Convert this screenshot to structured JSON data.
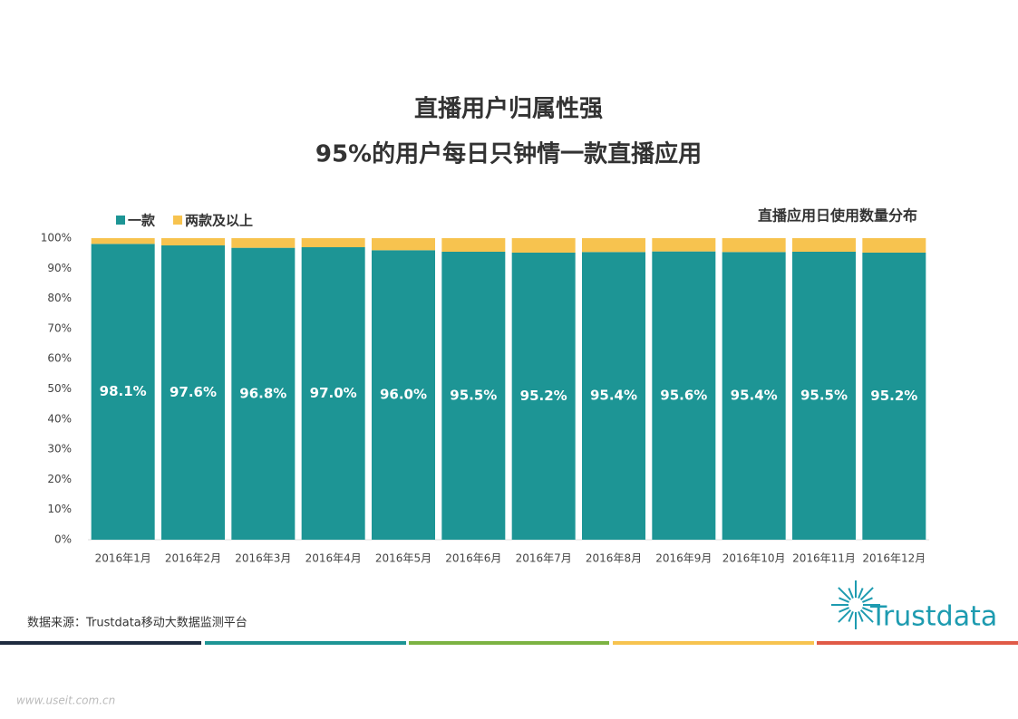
{
  "chart_data": {
    "type": "stacked_bar",
    "title": [
      "直播用户归属性强",
      "95%的用户每日只钟情一款直播应用"
    ],
    "subtitle": "直播应用日使用数量分布",
    "categories": [
      "2016年1月",
      "2016年2月",
      "2016年3月",
      "2016年4月",
      "2016年5月",
      "2016年6月",
      "2016年7月",
      "2016年8月",
      "2016年9月",
      "2016年10月",
      "2016年11月",
      "2016年12月"
    ],
    "series": [
      {
        "name": "一款",
        "color": "#1d9595",
        "values": [
          98.1,
          97.6,
          96.8,
          97.0,
          96.0,
          95.5,
          95.2,
          95.4,
          95.6,
          95.4,
          95.5,
          95.2
        ],
        "value_labels": [
          "98.1%",
          "97.6%",
          "96.8%",
          "97.0%",
          "96.0%",
          "95.5%",
          "95.2%",
          "95.4%",
          "95.6%",
          "95.4%",
          "95.5%",
          "95.2%"
        ]
      },
      {
        "name": "两款及以上",
        "color": "#f7c34f",
        "values": [
          1.9,
          2.4,
          3.2,
          3.0,
          4.0,
          4.5,
          4.8,
          4.6,
          4.4,
          4.6,
          4.5,
          4.8
        ]
      }
    ],
    "ylim": [
      0,
      100
    ],
    "yticks": [
      {
        "value": 0,
        "label": "0%"
      },
      {
        "value": 10,
        "label": "10%"
      },
      {
        "value": 20,
        "label": "20%"
      },
      {
        "value": 30,
        "label": "30%"
      },
      {
        "value": 40,
        "label": "40%"
      },
      {
        "value": 50,
        "label": "50%"
      },
      {
        "value": 60,
        "label": "60%"
      },
      {
        "value": 70,
        "label": "70%"
      },
      {
        "value": 80,
        "label": "80%"
      },
      {
        "value": 90,
        "label": "90%"
      },
      {
        "value": 100,
        "label": "100%"
      }
    ],
    "grid": false,
    "legend": "top-left",
    "source": "数据来源：Trustdata移动大数据监测平台",
    "logo": "Trustdata",
    "watermark": "www.useit.com.cn"
  }
}
